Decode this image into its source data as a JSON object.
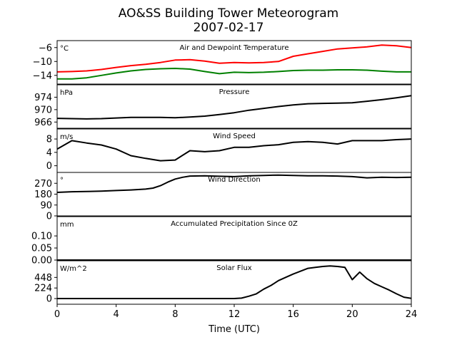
{
  "title": "AO&SS Building Tower Meteorogram",
  "subtitle": "2007-02-17",
  "xlabel": "Time (UTC)",
  "chart_data": [
    {
      "type": "line",
      "title": "Air and Dewpoint Temperature",
      "unit": "°C",
      "ylim": [
        -16.5,
        -4
      ],
      "yticks": [
        -6,
        -10,
        -14
      ],
      "ytick_labels": [
        "−6",
        "−10",
        "−14"
      ],
      "series": [
        {
          "color": "#ff0000",
          "x": [
            0,
            1,
            2,
            3,
            4,
            5,
            6,
            7,
            8,
            9,
            10,
            11,
            12,
            13,
            14,
            15,
            16,
            17,
            18,
            19,
            20,
            21,
            22,
            23,
            24
          ],
          "values": [
            -13.0,
            -12.9,
            -12.7,
            -12.3,
            -11.7,
            -11.2,
            -10.8,
            -10.3,
            -9.6,
            -9.5,
            -9.9,
            -10.5,
            -10.3,
            -10.4,
            -10.3,
            -10.0,
            -8.5,
            -7.8,
            -7.1,
            -6.4,
            -6.1,
            -5.8,
            -5.3,
            -5.5,
            -6.0
          ]
        },
        {
          "color": "#008000",
          "x": [
            0,
            1,
            2,
            3,
            4,
            5,
            6,
            7,
            8,
            9,
            10,
            11,
            12,
            13,
            14,
            15,
            16,
            17,
            18,
            19,
            20,
            21,
            22,
            23,
            24
          ],
          "values": [
            -15.0,
            -15.0,
            -14.7,
            -14.0,
            -13.3,
            -12.7,
            -12.3,
            -12.1,
            -12.0,
            -12.2,
            -12.9,
            -13.5,
            -13.1,
            -13.2,
            -13.1,
            -12.9,
            -12.6,
            -12.5,
            -12.5,
            -12.4,
            -12.4,
            -12.5,
            -12.8,
            -13.0,
            -13.0
          ]
        }
      ]
    },
    {
      "type": "line",
      "title": "Pressure",
      "unit": "hPa",
      "ylim": [
        964,
        978
      ],
      "yticks": [
        974,
        970,
        966
      ],
      "ytick_labels": [
        "974",
        "970",
        "966"
      ],
      "series": [
        {
          "color": "#000000",
          "x": [
            0,
            1,
            2,
            3,
            4,
            5,
            6,
            7,
            8,
            9,
            10,
            11,
            12,
            13,
            14,
            15,
            16,
            17,
            18,
            19,
            20,
            21,
            22,
            23,
            24
          ],
          "values": [
            967.2,
            967.1,
            967.0,
            967.1,
            967.3,
            967.5,
            967.5,
            967.5,
            967.4,
            967.6,
            967.9,
            968.4,
            969.0,
            969.8,
            970.4,
            971.0,
            971.5,
            971.9,
            972.0,
            972.1,
            972.2,
            972.7,
            973.2,
            973.8,
            974.5
          ]
        }
      ]
    },
    {
      "type": "line",
      "title": "Wind Speed",
      "unit": "m/s",
      "ylim": [
        -2,
        11
      ],
      "yticks": [
        8,
        4,
        0
      ],
      "ytick_labels": [
        "8",
        "4",
        "0"
      ],
      "series": [
        {
          "color": "#000000",
          "x": [
            0,
            1,
            2,
            3,
            4,
            5,
            6,
            7,
            8,
            9,
            10,
            11,
            12,
            13,
            14,
            15,
            16,
            17,
            18,
            19,
            20,
            21,
            22,
            23,
            24
          ],
          "values": [
            5.0,
            7.5,
            6.8,
            6.2,
            5.0,
            3.0,
            2.2,
            1.5,
            1.7,
            4.5,
            4.2,
            4.5,
            5.5,
            5.5,
            6.0,
            6.3,
            7.0,
            7.2,
            7.0,
            6.5,
            7.5,
            7.5,
            7.5,
            7.8,
            8.0
          ]
        }
      ]
    },
    {
      "type": "line",
      "title": "Wind Direction",
      "unit": "°",
      "ylim": [
        0,
        360
      ],
      "yticks": [
        270,
        180,
        90,
        0
      ],
      "ytick_labels": [
        "270",
        "180",
        "90",
        "0"
      ],
      "series": [
        {
          "color": "#000000",
          "x": [
            0,
            1,
            2,
            3,
            4,
            5,
            6,
            6.5,
            7,
            7.5,
            8,
            8.5,
            9,
            10,
            11,
            12,
            13,
            14,
            15,
            16,
            17,
            18,
            19,
            20,
            21,
            22,
            23,
            24
          ],
          "values": [
            195,
            200,
            202,
            205,
            210,
            215,
            222,
            230,
            250,
            280,
            305,
            320,
            330,
            332,
            328,
            325,
            332,
            335,
            338,
            335,
            332,
            332,
            330,
            325,
            315,
            320,
            318,
            320
          ]
        }
      ]
    },
    {
      "type": "line",
      "title": "Accumulated Precipitation Since 0Z",
      "unit": "mm",
      "ylim": [
        0,
        0.18
      ],
      "yticks": [
        0.1,
        0.05,
        0.0
      ],
      "ytick_labels": [
        "0.10",
        "0.05",
        "0.00"
      ],
      "series": [
        {
          "color": "#000000",
          "x": [
            0,
            24
          ],
          "values": [
            0,
            0
          ]
        }
      ]
    },
    {
      "type": "line",
      "title": "Solar Flux",
      "unit": "W/m^2",
      "ylim": [
        -120,
        800
      ],
      "yticks": [
        448,
        224,
        0
      ],
      "ytick_labels": [
        "448",
        "224",
        "0"
      ],
      "series": [
        {
          "color": "#000000",
          "x": [
            0,
            12,
            12.5,
            13,
            13.5,
            14,
            14.5,
            15,
            15.5,
            16,
            16.5,
            17,
            17.5,
            18,
            18.5,
            19,
            19.5,
            20,
            20.5,
            21,
            21.5,
            22,
            22.5,
            23,
            23.5,
            24
          ],
          "values": [
            0,
            0,
            10,
            50,
            100,
            200,
            280,
            380,
            450,
            520,
            580,
            640,
            660,
            680,
            690,
            680,
            660,
            400,
            560,
            420,
            320,
            250,
            180,
            100,
            30,
            5
          ]
        }
      ]
    }
  ],
  "x_axis": {
    "xlim": [
      0,
      24
    ],
    "ticks": [
      0,
      4,
      8,
      12,
      16,
      20,
      24
    ],
    "tick_labels": [
      "0",
      "4",
      "8",
      "12",
      "16",
      "20",
      "24"
    ]
  }
}
